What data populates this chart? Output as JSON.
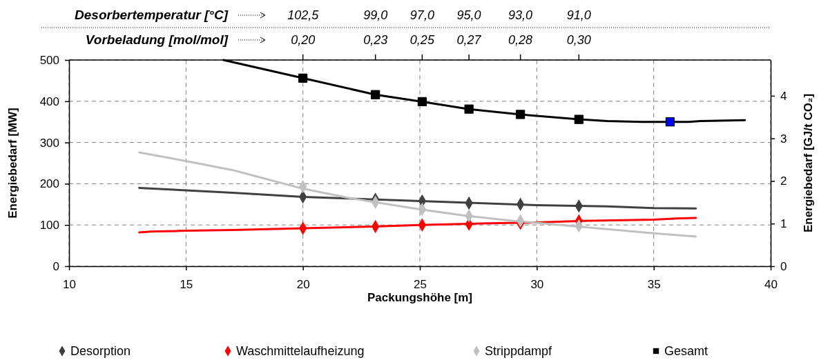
{
  "chart_data": {
    "type": "line",
    "xlabel": "Packungshöhe [m]",
    "ylabel": "Energiebedarf [MW]",
    "y2label": "Energiebedarf [GJ/t CO₂]",
    "annotations": [
      "Desorbertemperatur [°C]",
      "102,5",
      "99,0",
      "97,0",
      "95,0",
      "93,0",
      "91,0",
      "Vorbeladung [mol/mol]",
      {
        "text": "0,20",
        "x": 20
      },
      {
        "text": "0,23",
        "x": 23.1
      },
      {
        "text": "0,25",
        "x": 25.1
      },
      {
        "text": "0,27",
        "x": 27.1
      },
      {
        "text": "0,28",
        "x": 29.3
      },
      {
        "text": "0,30",
        "x": 31.8
      }
    ],
    "xlim": [
      10,
      40
    ],
    "xticks": [
      10,
      15,
      20,
      25,
      30,
      35,
      40
    ],
    "ylim": [
      0,
      500
    ],
    "yticks": [
      0,
      100,
      200,
      300,
      400,
      500
    ],
    "y2lim": [
      0,
      4.84
    ],
    "y2ticks": [
      0,
      1,
      2,
      3,
      4
    ],
    "grid": true,
    "legend": "bottom",
    "line_style": "solid",
    "series": [
      {
        "color": "#404040",
        "marker": "none",
        "x": [
          13,
          15,
          17,
          20,
          25,
          30,
          33,
          35,
          36.8
        ],
        "values": [
          190,
          184,
          178,
          168,
          158,
          148,
          145,
          141,
          140
        ]
      },
      {
        "color": "#ff0000",
        "marker": "none",
        "x": [
          13,
          13.5,
          15,
          17,
          20,
          23,
          25,
          28,
          30,
          32,
          35,
          36,
          36.8
        ],
        "values": [
          82,
          84,
          86,
          88,
          92,
          96,
          100,
          104,
          106,
          110,
          113,
          116,
          117
        ]
      },
      {
        "color": "#c0c0c0",
        "marker": "none",
        "x": [
          13,
          15,
          17,
          20,
          22,
          25,
          27,
          29,
          31,
          33,
          35,
          36.8
        ],
        "values": [
          276,
          255,
          233,
          188,
          165,
          138,
          122,
          110,
          100,
          90,
          80,
          72
        ]
      },
      {
        "color": "#000000",
        "marker": "none",
        "x": [
          16.6,
          20,
          23.1,
          25.1,
          27.1,
          29.3,
          31.8,
          33,
          34.5,
          36.5,
          37,
          38.9
        ],
        "values": [
          500,
          456,
          416,
          399,
          381,
          368,
          356,
          352,
          350,
          350,
          352,
          354
        ]
      },
      {
        "name": "Desorption",
        "type": "scatter",
        "marker": "diamond",
        "color": "#404040",
        "x": [
          20,
          23.1,
          25.1,
          27.1,
          29.3,
          31.8
        ],
        "values": [
          168,
          162,
          158,
          153,
          150,
          146
        ]
      },
      {
        "name": "Waschmittelaufheizung",
        "type": "scatter",
        "marker": "diamond",
        "color": "#ff0000",
        "x": [
          20,
          23.1,
          25.1,
          27.1,
          29.3,
          31.8
        ],
        "values": [
          92,
          96,
          100,
          102,
          104,
          110
        ]
      },
      {
        "name": "Strippdampf",
        "type": "scatter",
        "marker": "diamond",
        "color": "#c0c0c0",
        "x": [
          20,
          23.1,
          25.1,
          27.1,
          29.3,
          31.8
        ],
        "values": [
          193,
          155,
          138,
          122,
          110,
          98
        ]
      },
      {
        "name": "Gesamt",
        "type": "scatter",
        "marker": "square",
        "color": "#000000",
        "colors": [
          "#000000",
          "#000000",
          "#000000",
          "#000000",
          "#000000",
          "#000000",
          "#0000ff"
        ],
        "x": [
          20,
          23.1,
          25.1,
          27.1,
          29.3,
          31.8,
          35.7
        ],
        "values": [
          456,
          416,
          399,
          381,
          368,
          356,
          350
        ]
      }
    ]
  }
}
